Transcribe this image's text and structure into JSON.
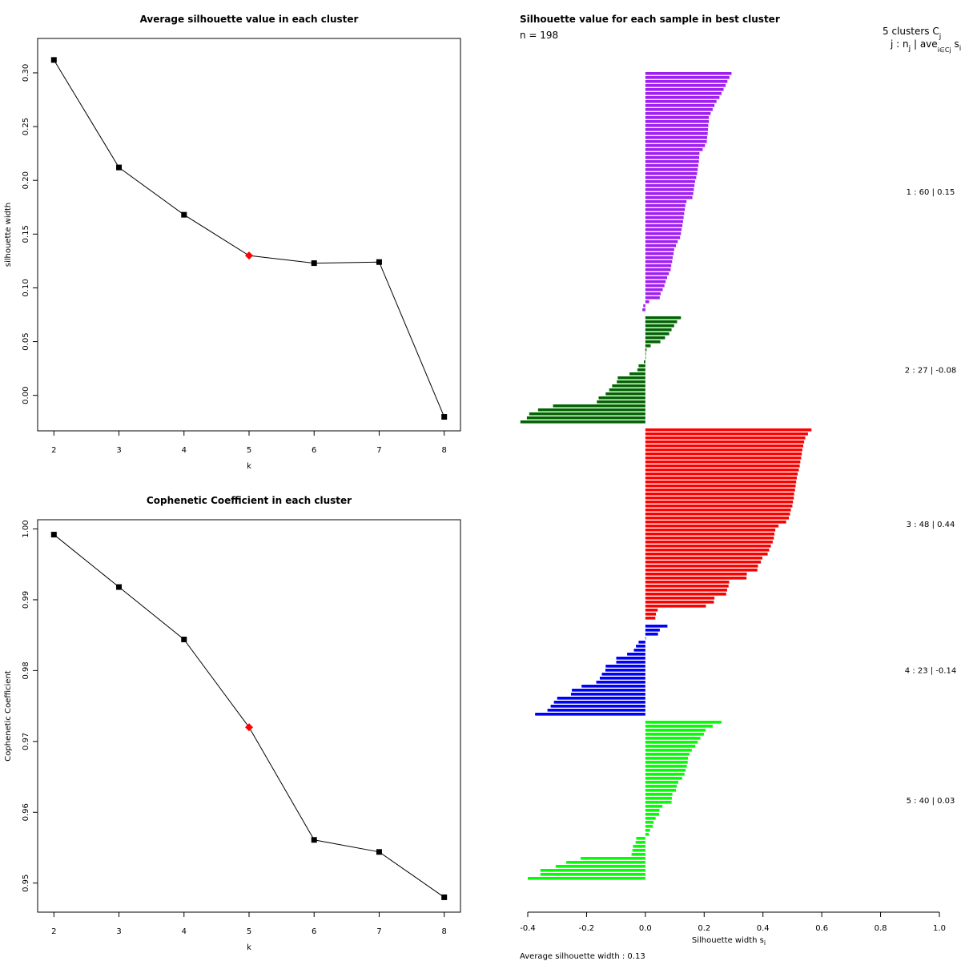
{
  "chart_data": [
    {
      "type": "line",
      "title": "Average silhouette value in each cluster",
      "xlabel": "k",
      "ylabel": "silhouette width",
      "x": [
        2,
        3,
        4,
        5,
        6,
        7,
        8
      ],
      "y": [
        0.312,
        0.212,
        0.168,
        0.13,
        0.123,
        0.124,
        -0.02
      ],
      "highlight_x": 5,
      "xlim": [
        1.75,
        8.25
      ],
      "ylim": [
        -0.033,
        0.332
      ],
      "xticks": [
        "2",
        "3",
        "4",
        "5",
        "6",
        "7",
        "8"
      ],
      "yticks": [
        0.0,
        0.05,
        0.1,
        0.15,
        0.2,
        0.25,
        0.3
      ],
      "ytick_labels": [
        "0.00",
        "0.05",
        "0.10",
        "0.15",
        "0.20",
        "0.25",
        "0.30"
      ],
      "marker_color": "#000000",
      "highlight_color": "#ff0000"
    },
    {
      "type": "line",
      "title": "Cophenetic Coefficient in each cluster",
      "xlabel": "k",
      "ylabel": "Cophenetic Coefficient",
      "x": [
        2,
        3,
        4,
        5,
        6,
        7,
        8
      ],
      "y": [
        0.9992,
        0.9918,
        0.9844,
        0.972,
        0.9561,
        0.9544,
        0.948
      ],
      "highlight_x": 5,
      "xlim": [
        1.75,
        8.25
      ],
      "ylim": [
        0.9459,
        1.0013
      ],
      "xticks": [
        "2",
        "3",
        "4",
        "5",
        "6",
        "7",
        "8"
      ],
      "yticks": [
        0.95,
        0.96,
        0.97,
        0.98,
        0.99,
        1.0
      ],
      "ytick_labels": [
        "0.95",
        "0.96",
        "0.97",
        "0.98",
        "0.99",
        "1.00"
      ],
      "marker_color": "#000000",
      "highlight_color": "#ff0000"
    },
    {
      "type": "bar",
      "orientation": "horizontal",
      "title": "Silhouette value for each sample in best cluster",
      "n_label": "n = 198",
      "header_line1": "5  clusters  C",
      "header_sub1": "j",
      "header_line2": "j :  n",
      "header_sub2": "j",
      "header_line2b": " | ave",
      "header_sub3": "i∈Cj",
      "header_line2c": " s",
      "header_sub4": "i",
      "xlabel": "Silhouette width s",
      "xlabel_sub": "i",
      "footer": "Average silhouette width :  0.13",
      "xlim": [
        -0.4,
        1.0
      ],
      "xticks": [
        -0.4,
        -0.2,
        0.0,
        0.2,
        0.4,
        0.6,
        0.8,
        1.0
      ],
      "xtick_labels": [
        "-0.4",
        "-0.2",
        "0.0",
        "0.2",
        "0.4",
        "0.6",
        "0.8",
        "1.0"
      ],
      "clusters": [
        {
          "id": 1,
          "n": 60,
          "avg": 0.15,
          "color": "#a020f0",
          "label": "1 :  60  |  0.15",
          "values": [
            0.293,
            0.286,
            0.279,
            0.273,
            0.266,
            0.259,
            0.252,
            0.242,
            0.235,
            0.229,
            0.222,
            0.216,
            0.216,
            0.214,
            0.213,
            0.212,
            0.21,
            0.209,
            0.203,
            0.195,
            0.184,
            0.183,
            0.182,
            0.18,
            0.178,
            0.176,
            0.173,
            0.169,
            0.167,
            0.165,
            0.163,
            0.16,
            0.14,
            0.136,
            0.134,
            0.132,
            0.13,
            0.128,
            0.126,
            0.123,
            0.121,
            0.118,
            0.11,
            0.104,
            0.098,
            0.096,
            0.093,
            0.091,
            0.088,
            0.086,
            0.08,
            0.074,
            0.069,
            0.065,
            0.059,
            0.052,
            0.049,
            0.013,
            -0.007,
            -0.01
          ]
        },
        {
          "id": 2,
          "n": 27,
          "avg": -0.08,
          "color": "#006400",
          "label": "2 :  27  |  -0.08",
          "values": [
            0.121,
            0.108,
            0.098,
            0.089,
            0.081,
            0.067,
            0.051,
            0.018,
            0.004,
            0.002,
            0.0,
            -0.005,
            -0.023,
            -0.027,
            -0.054,
            -0.094,
            -0.097,
            -0.113,
            -0.123,
            -0.135,
            -0.159,
            -0.165,
            -0.314,
            -0.365,
            -0.395,
            -0.403,
            -0.425
          ]
        },
        {
          "id": 3,
          "n": 48,
          "avg": 0.44,
          "color": "#ff0000",
          "label": "3 :  48  |  0.44",
          "values": [
            0.565,
            0.553,
            0.544,
            0.54,
            0.537,
            0.534,
            0.532,
            0.53,
            0.527,
            0.525,
            0.522,
            0.518,
            0.515,
            0.513,
            0.511,
            0.509,
            0.506,
            0.505,
            0.502,
            0.5,
            0.495,
            0.492,
            0.488,
            0.479,
            0.453,
            0.442,
            0.439,
            0.437,
            0.433,
            0.427,
            0.421,
            0.416,
            0.398,
            0.393,
            0.383,
            0.381,
            0.345,
            0.344,
            0.285,
            0.283,
            0.278,
            0.275,
            0.235,
            0.233,
            0.206,
            0.042,
            0.036,
            0.034
          ]
        },
        {
          "id": 4,
          "n": 23,
          "avg": -0.14,
          "color": "#0000ff",
          "label": "4 :  23  |  -0.14",
          "values": [
            0.075,
            0.049,
            0.043,
            0.0,
            -0.023,
            -0.032,
            -0.039,
            -0.062,
            -0.099,
            -0.099,
            -0.135,
            -0.136,
            -0.148,
            -0.155,
            -0.167,
            -0.217,
            -0.25,
            -0.253,
            -0.3,
            -0.311,
            -0.322,
            -0.333,
            -0.375
          ]
        },
        {
          "id": 5,
          "n": 40,
          "avg": 0.03,
          "color": "#00ff00",
          "label": "5 :  40  |  0.03",
          "values": [
            0.259,
            0.229,
            0.205,
            0.199,
            0.187,
            0.178,
            0.17,
            0.158,
            0.15,
            0.145,
            0.144,
            0.141,
            0.137,
            0.133,
            0.125,
            0.112,
            0.107,
            0.104,
            0.092,
            0.09,
            0.089,
            0.058,
            0.048,
            0.047,
            0.035,
            0.028,
            0.025,
            0.016,
            0.012,
            -0.031,
            -0.033,
            -0.042,
            -0.044,
            -0.047,
            -0.22,
            -0.269,
            -0.305,
            -0.357,
            -0.357,
            -0.4
          ]
        }
      ]
    }
  ]
}
